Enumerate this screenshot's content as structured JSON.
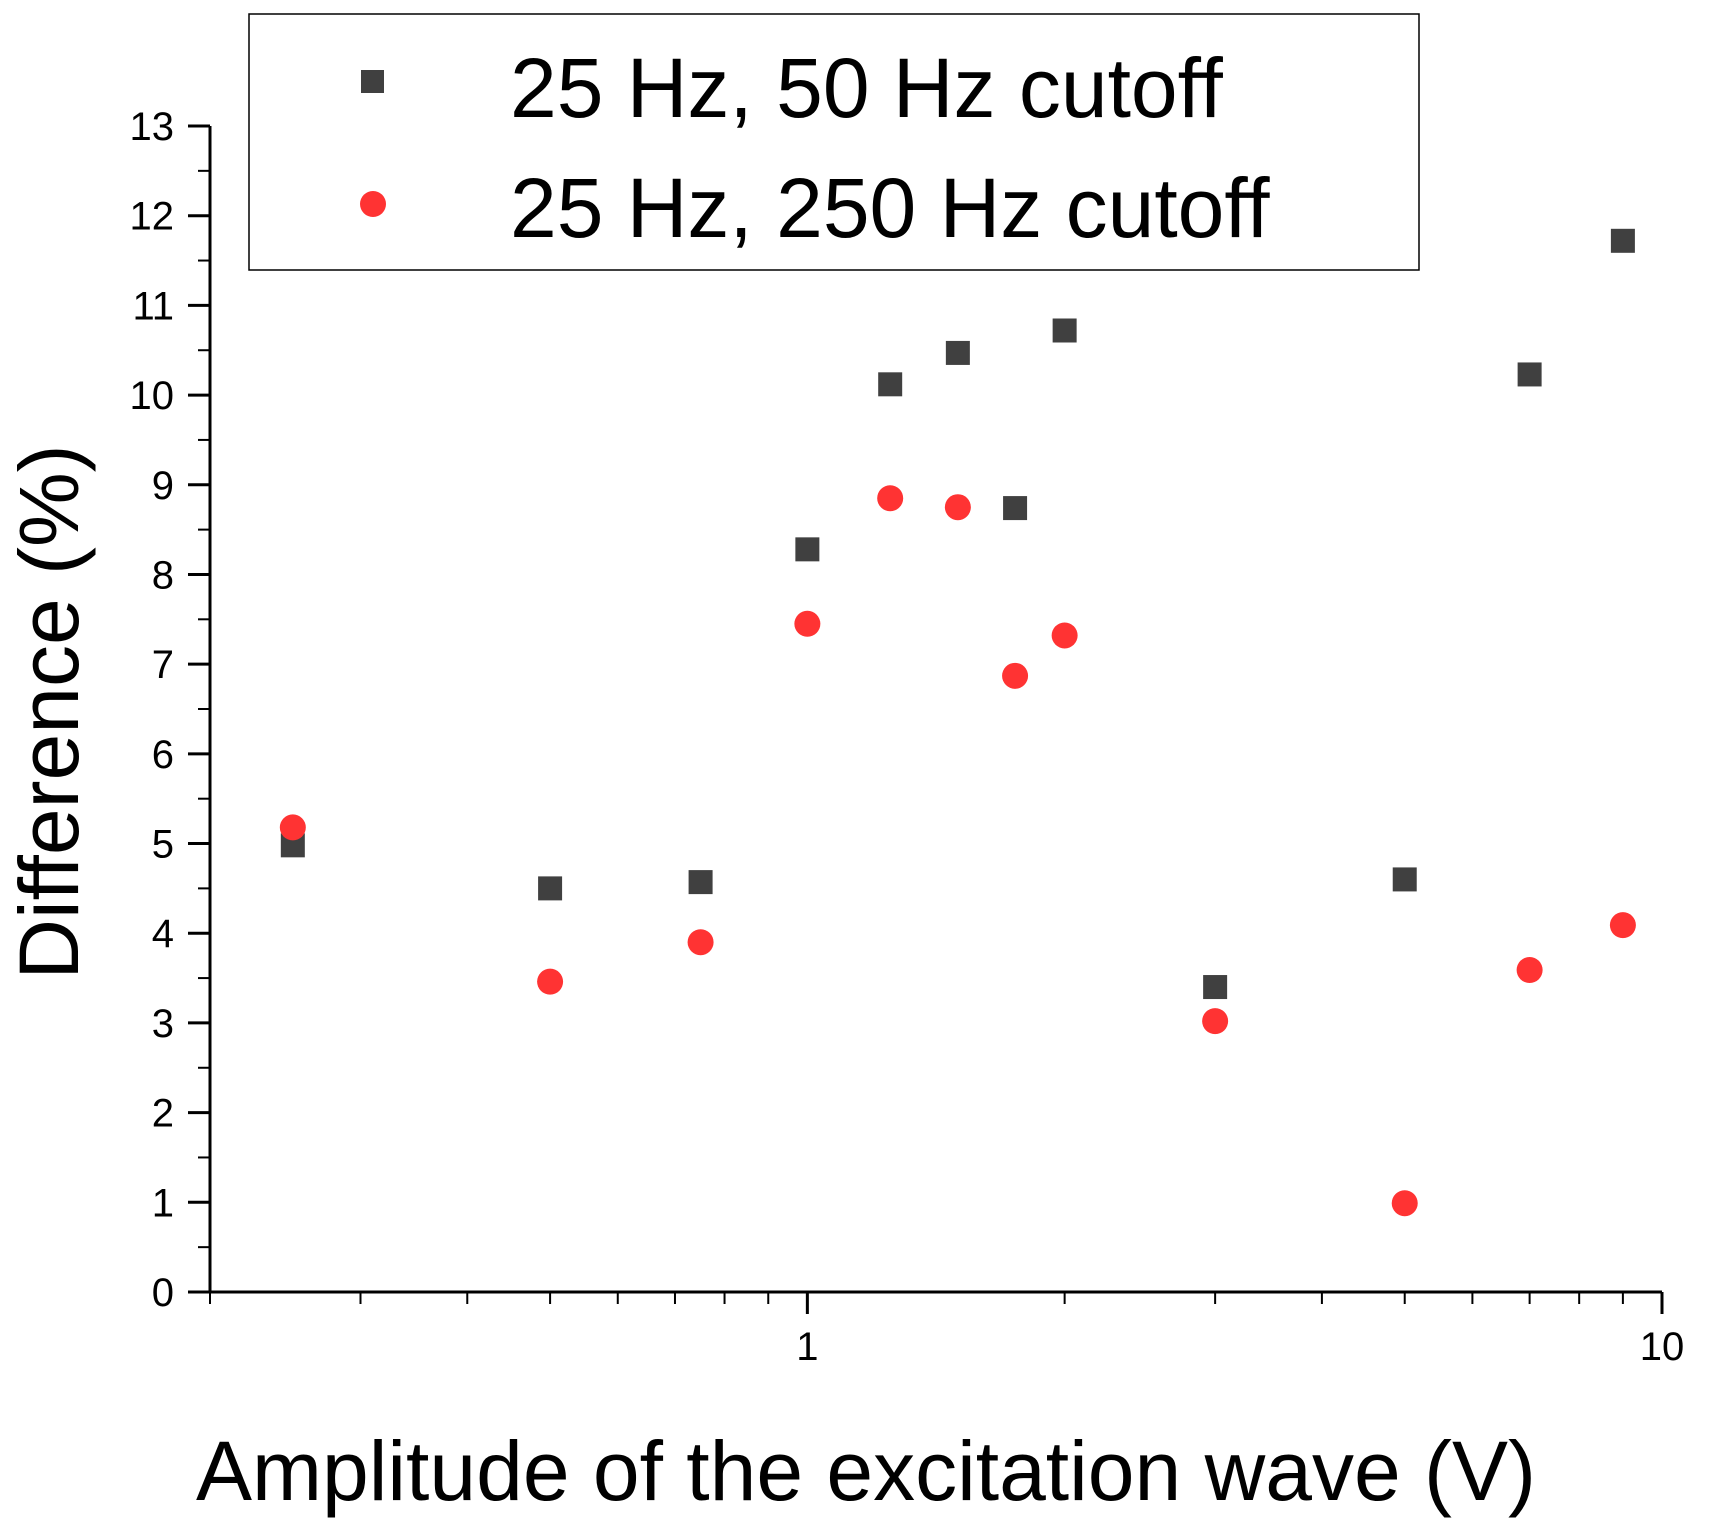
{
  "chart_data": {
    "type": "scatter",
    "title": "",
    "xlabel": "Amplitude of the excitation wave (V)",
    "ylabel": "Difference (%)",
    "xscale": "log",
    "xlim": [
      0.2,
      10
    ],
    "ylim": [
      0,
      13
    ],
    "x_ticks": [
      1,
      10
    ],
    "x_tick_labels": [
      "1",
      "10"
    ],
    "y_ticks": [
      0,
      1,
      2,
      3,
      4,
      5,
      6,
      7,
      8,
      9,
      10,
      11,
      12,
      13
    ],
    "y_tick_labels": [
      "0",
      "1",
      "2",
      "3",
      "4",
      "5",
      "6",
      "7",
      "8",
      "9",
      "10",
      "11",
      "12",
      "13"
    ],
    "grid": false,
    "legend_position": "top",
    "series": [
      {
        "name": "25 Hz, 50 Hz cutoff",
        "marker": "square",
        "color": "#404040",
        "x": [
          0.25,
          0.5,
          0.75,
          1.0,
          1.25,
          1.5,
          1.75,
          2.0,
          3.0,
          5.0,
          7.0,
          9.0
        ],
        "y": [
          4.98,
          4.5,
          4.57,
          8.28,
          10.12,
          10.47,
          8.74,
          10.72,
          3.4,
          4.6,
          10.23,
          11.72
        ]
      },
      {
        "name": "25 Hz, 250 Hz cutoff",
        "marker": "circle",
        "color": "#ff3333",
        "x": [
          0.25,
          0.5,
          0.75,
          1.0,
          1.25,
          1.5,
          1.75,
          2.0,
          3.0,
          5.0,
          7.0,
          9.0
        ],
        "y": [
          5.18,
          3.46,
          3.9,
          7.45,
          8.85,
          8.75,
          6.87,
          7.32,
          3.02,
          0.99,
          3.59,
          4.09
        ]
      }
    ]
  }
}
